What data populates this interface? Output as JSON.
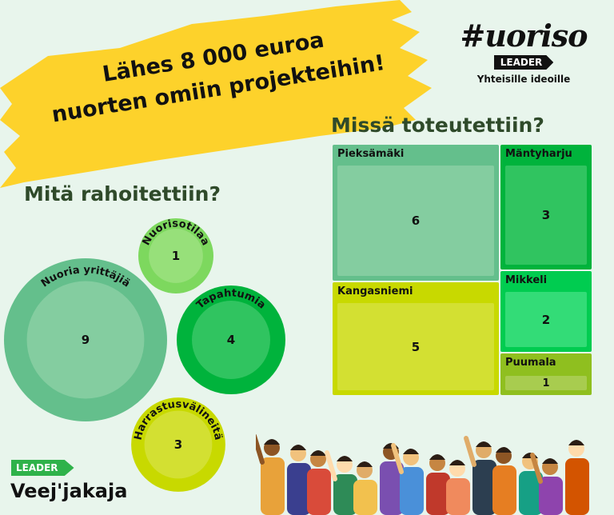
{
  "headline": {
    "line1": "Lähes 8 000 euroa",
    "line2": "nuorten omiin projekteihin!"
  },
  "logo": {
    "word": "#uoriso",
    "tag": "LEADER",
    "subtitle": "Yhteisille ideoille"
  },
  "footer_logo": {
    "tag": "LEADER",
    "name": "Veej'jakaja"
  },
  "colors": {
    "background": "#e8f5ec",
    "brush": "#fdd22b",
    "heading": "#2f4a2a"
  },
  "chart_data": [
    {
      "type": "bubble",
      "title": "Mitä rahoitettiin?",
      "categories": [
        "Nuoria yrittäjiä",
        "Nuorisotilaa",
        "Tapahtumia",
        "Harrastusvälineitä"
      ],
      "values": [
        9,
        1,
        4,
        3
      ],
      "colors": [
        [
          "#64bf8c",
          "#84cda0"
        ],
        [
          "#7dd85e",
          "#97e07a"
        ],
        [
          "#00b33c",
          "#30c460"
        ],
        [
          "#c8d900",
          "#d3e032"
        ]
      ]
    },
    {
      "type": "treemap",
      "title": "Missä toteutettiin?",
      "categories": [
        "Pieksämäki",
        "Kangasniemi",
        "Mäntyharju",
        "Mikkeli",
        "Puumala"
      ],
      "values": [
        6,
        5,
        3,
        2,
        1
      ],
      "colors": [
        [
          "#64bf8c",
          "#84cda0"
        ],
        [
          "#c8d900",
          "#d3e032"
        ],
        [
          "#00b33c",
          "#30c460"
        ],
        [
          "#00cc50",
          "#33dc77"
        ],
        [
          "#8fbf1f",
          "#a8cc4f"
        ]
      ]
    }
  ]
}
